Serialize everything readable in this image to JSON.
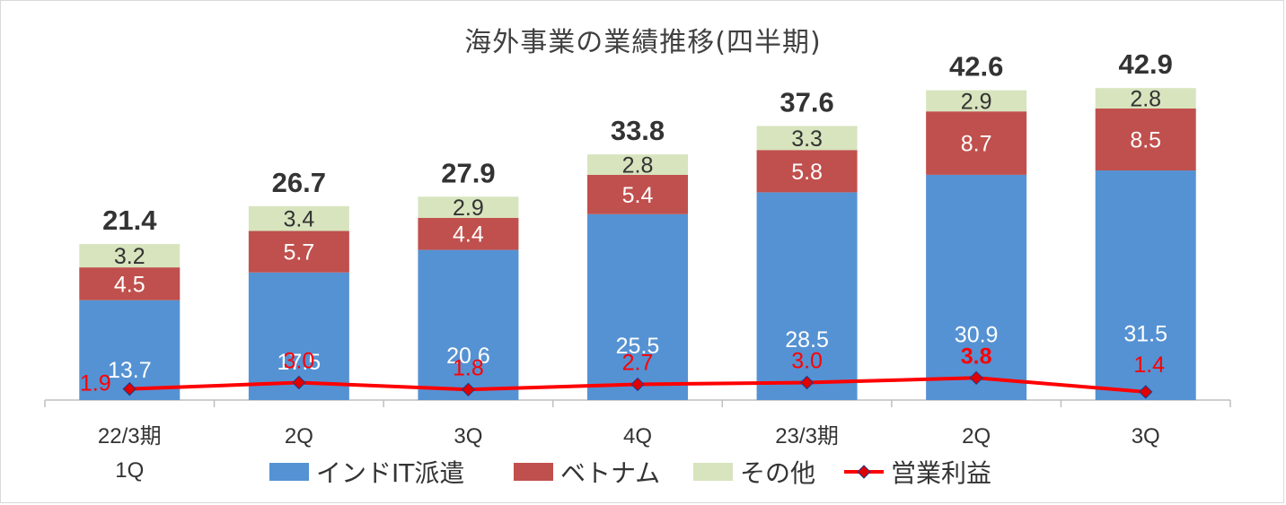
{
  "chart_data": {
    "type": "bar",
    "stacked": true,
    "title": "海外事業の業績推移(四半期)",
    "categories": [
      [
        "22/3期",
        "1Q"
      ],
      [
        "2Q"
      ],
      [
        "3Q"
      ],
      [
        "4Q"
      ],
      [
        "23/3期"
      ],
      [
        "2Q"
      ],
      [
        "3Q"
      ]
    ],
    "series": [
      {
        "name": "インドIT派遣",
        "color": "#5592d3",
        "values": [
          13.7,
          17.5,
          20.6,
          25.5,
          28.5,
          30.9,
          31.5
        ]
      },
      {
        "name": "ベトナム",
        "color": "#c0504d",
        "values": [
          4.5,
          5.7,
          4.4,
          5.4,
          5.8,
          8.7,
          8.5
        ]
      },
      {
        "name": "その他",
        "color": "#d7e4bd",
        "values": [
          3.2,
          3.4,
          2.9,
          2.8,
          3.3,
          2.9,
          2.8
        ]
      }
    ],
    "totals": [
      21.4,
      26.7,
      27.9,
      33.8,
      37.6,
      42.6,
      42.9
    ],
    "line_series": {
      "name": "営業利益",
      "color": "#ff0000",
      "marker_color": "#e00000",
      "values": [
        1.9,
        3.0,
        1.8,
        2.7,
        3.0,
        3.8,
        1.4
      ]
    },
    "ylim": [
      0,
      47.5
    ],
    "legend": "bottom",
    "grid": false
  }
}
